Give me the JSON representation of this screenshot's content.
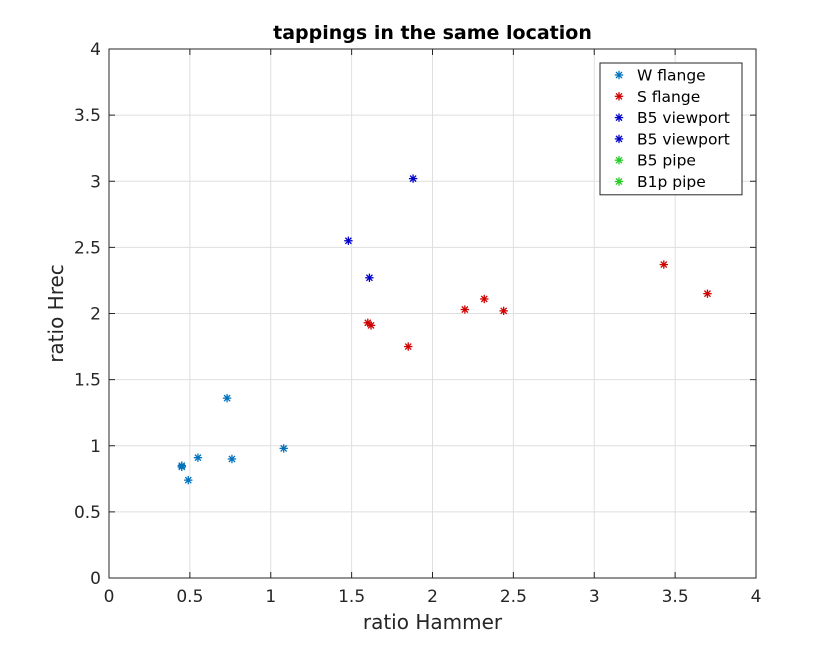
{
  "chart_data": {
    "type": "scatter",
    "title": "tappings in the same location",
    "xlabel": "ratio Hammer",
    "ylabel": "ratio Hrec",
    "xlim": [
      0,
      4
    ],
    "ylim": [
      0,
      4
    ],
    "xticks": [
      0,
      0.5,
      1,
      1.5,
      2,
      2.5,
      3,
      3.5,
      4
    ],
    "yticks": [
      0,
      0.5,
      1,
      1.5,
      2,
      2.5,
      3,
      3.5,
      4
    ],
    "xtick_labels": [
      "0",
      "0.5",
      "1",
      "1.5",
      "2",
      "2.5",
      "3",
      "3.5",
      "4"
    ],
    "ytick_labels": [
      "0",
      "0.5",
      "1",
      "1.5",
      "2",
      "2.5",
      "3",
      "3.5",
      "4"
    ],
    "grid": true,
    "legend_position": "top-right",
    "marker": "*",
    "series": [
      {
        "name": "W flange",
        "color": "#0072BD",
        "points": [
          [
            0.45,
            0.85
          ],
          [
            0.45,
            0.84
          ],
          [
            0.49,
            0.74
          ],
          [
            0.55,
            0.91
          ],
          [
            0.73,
            1.36
          ],
          [
            0.76,
            0.9
          ],
          [
            1.08,
            0.98
          ]
        ]
      },
      {
        "name": "S flange",
        "color": "#D00000",
        "points": [
          [
            1.6,
            1.93
          ],
          [
            1.62,
            1.91
          ],
          [
            1.85,
            1.75
          ],
          [
            2.2,
            2.03
          ],
          [
            2.32,
            2.11
          ],
          [
            2.44,
            2.02
          ],
          [
            3.43,
            2.37
          ],
          [
            3.7,
            2.15
          ]
        ]
      },
      {
        "name": "B5 viewport",
        "color": "#0000CC",
        "points": [
          [
            1.48,
            2.55
          ],
          [
            1.61,
            2.27
          ],
          [
            1.88,
            3.02
          ]
        ]
      },
      {
        "name": "B5 viewport",
        "color": "#0000CC",
        "points": []
      },
      {
        "name": "B5 pipe",
        "color": "#22CC22",
        "points": []
      },
      {
        "name": "B1p pipe",
        "color": "#22CC22",
        "points": []
      }
    ]
  }
}
